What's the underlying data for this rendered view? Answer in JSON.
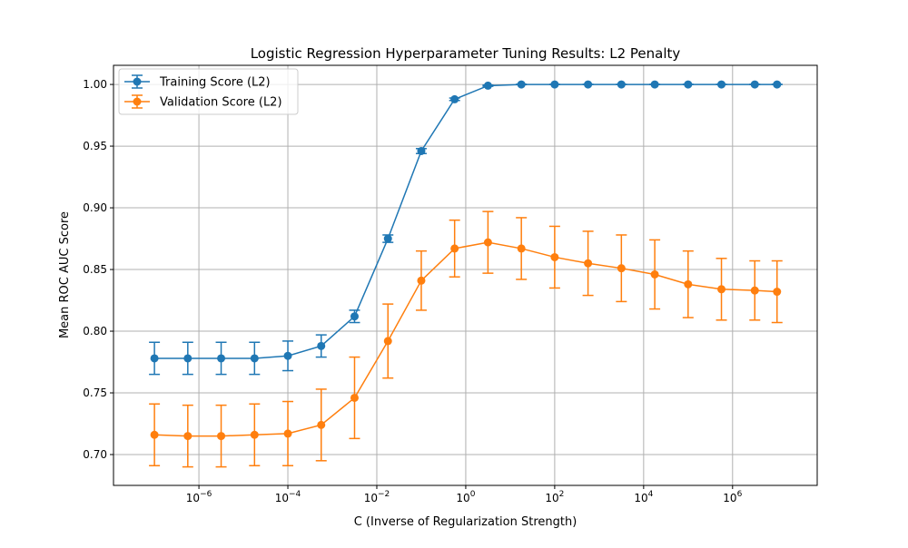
{
  "chart_data": {
    "type": "line",
    "title": "Logistic Regression Hyperparameter Tuning Results: L2 Penalty",
    "xlabel": "C (Inverse of Regularization Strength)",
    "ylabel": "Mean ROC AUC Score",
    "x_scale": "log",
    "xlim": [
      1.2e-08,
      80000000.0
    ],
    "ylim": [
      0.675,
      1.0155
    ],
    "x_ticks": [
      {
        "base": "10",
        "exp": "−6",
        "value": 1e-06
      },
      {
        "base": "10",
        "exp": "−4",
        "value": 0.0001
      },
      {
        "base": "10",
        "exp": "−2",
        "value": 0.01
      },
      {
        "base": "10",
        "exp": "0",
        "value": 1
      },
      {
        "base": "10",
        "exp": "2",
        "value": 100
      },
      {
        "base": "10",
        "exp": "4",
        "value": 10000
      },
      {
        "base": "10",
        "exp": "6",
        "value": 1000000
      }
    ],
    "y_ticks": [
      {
        "label": "0.70",
        "value": 0.7
      },
      {
        "label": "0.75",
        "value": 0.75
      },
      {
        "label": "0.80",
        "value": 0.8
      },
      {
        "label": "0.85",
        "value": 0.85
      },
      {
        "label": "0.90",
        "value": 0.9
      },
      {
        "label": "0.95",
        "value": 0.95
      },
      {
        "label": "1.00",
        "value": 1.0
      }
    ],
    "grid": true,
    "legend_position": "top-left",
    "x": [
      1e-07,
      5.62e-07,
      3.16e-06,
      1.78e-05,
      0.0001,
      0.000562,
      0.00316,
      0.0178,
      0.1,
      0.562,
      3.16,
      17.8,
      100,
      562,
      3160,
      17800,
      100000,
      562000,
      3160000,
      10000000
    ],
    "series": [
      {
        "name": "Training Score (L2)",
        "color": "#1f77b4",
        "values": [
          0.778,
          0.778,
          0.778,
          0.778,
          0.78,
          0.788,
          0.812,
          0.875,
          0.946,
          0.988,
          0.999,
          1.0,
          1.0,
          1.0,
          1.0,
          1.0,
          1.0,
          1.0,
          1.0,
          1.0
        ],
        "errors": [
          0.013,
          0.013,
          0.013,
          0.013,
          0.012,
          0.009,
          0.005,
          0.003,
          0.002,
          0.001,
          0.0005,
          0.0002,
          0.0001,
          0.0001,
          0.0001,
          0.0001,
          0.0001,
          0.0001,
          0.0001,
          0.0001
        ]
      },
      {
        "name": "Validation Score (L2)",
        "color": "#ff7f0e",
        "values": [
          0.716,
          0.715,
          0.715,
          0.716,
          0.717,
          0.724,
          0.746,
          0.792,
          0.841,
          0.867,
          0.872,
          0.867,
          0.86,
          0.855,
          0.851,
          0.846,
          0.838,
          0.834,
          0.833,
          0.832
        ],
        "errors": [
          0.025,
          0.025,
          0.025,
          0.025,
          0.026,
          0.029,
          0.033,
          0.03,
          0.024,
          0.023,
          0.025,
          0.025,
          0.025,
          0.026,
          0.027,
          0.028,
          0.027,
          0.025,
          0.024,
          0.025
        ]
      }
    ]
  }
}
